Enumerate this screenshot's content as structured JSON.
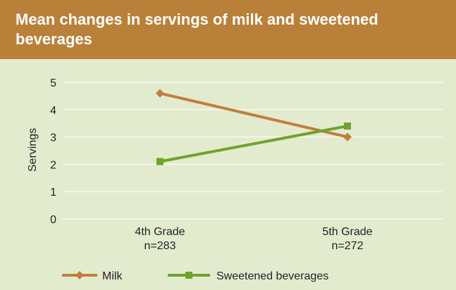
{
  "chart_data": {
    "type": "line",
    "title": "Mean changes in servings of milk and sweetened beverages",
    "xlabel": "",
    "ylabel": "Servings",
    "categories": [
      [
        "4th Grade",
        "n=283"
      ],
      [
        "5th Grade",
        "n=272"
      ]
    ],
    "ylim": [
      0,
      5
    ],
    "yticks": [
      0,
      1,
      2,
      3,
      4,
      5
    ],
    "grid": true,
    "legend": "bottom",
    "series": [
      {
        "name": "Milk",
        "values": [
          4.6,
          3.0
        ],
        "color": "#c17f3a",
        "marker": "diamond"
      },
      {
        "name": "Sweetened beverages",
        "values": [
          2.1,
          3.4
        ],
        "color": "#6fa22e",
        "marker": "square"
      }
    ]
  },
  "colors": {
    "header": "#b98039",
    "background": "#e3ebcf",
    "grid": "#ffffff",
    "text": "#231f20"
  }
}
